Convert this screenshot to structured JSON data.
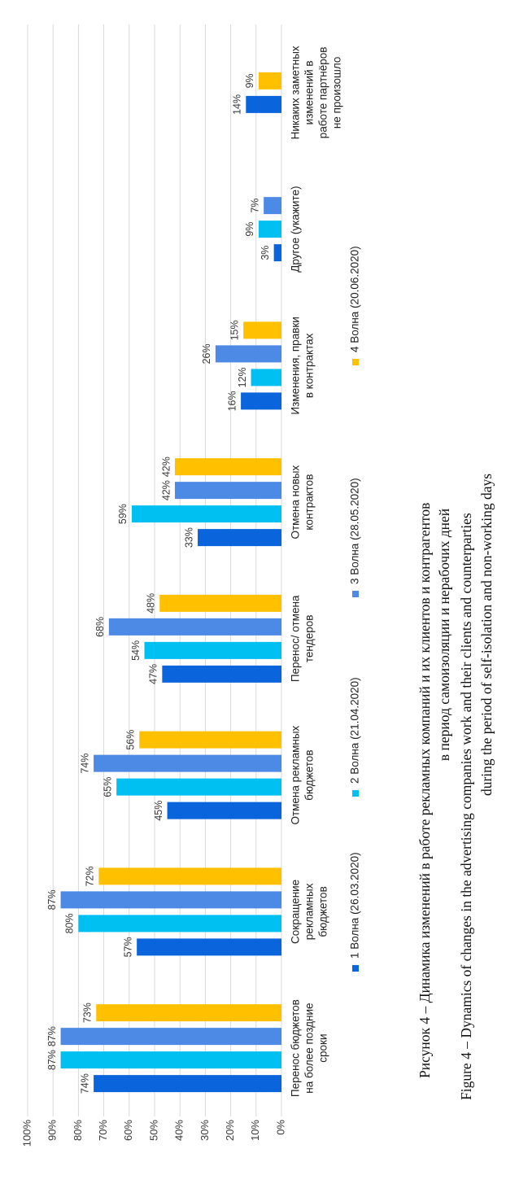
{
  "chart_data": {
    "type": "bar",
    "orientation": "rotated-90-ccw",
    "ylim": [
      0,
      100
    ],
    "yticks": [
      "0%",
      "10%",
      "20%",
      "30%",
      "40%",
      "50%",
      "60%",
      "70%",
      "80%",
      "90%",
      "100%"
    ],
    "grid": true,
    "legend_position": "bottom",
    "categories": [
      [
        "Перенос бюджетов",
        "на более поздние",
        "сроки"
      ],
      [
        "Сокращение",
        "рекламных",
        "бюджетов"
      ],
      [
        "Отмена рекламных",
        "бюджетов"
      ],
      [
        "Перенос/ отмена",
        "тендеров"
      ],
      [
        "Отмена новых",
        "контрактов"
      ],
      [
        "Изменения, правки",
        "в контрактах"
      ],
      [
        "Другое (укажите)"
      ],
      [
        "Никаких заметных",
        "изменений в",
        "работе партнёров",
        "не произошло"
      ]
    ],
    "series": [
      {
        "name": "1 Волна (26.03.2020)",
        "color": "#0a64dc",
        "values": [
          74,
          57,
          45,
          47,
          33,
          16,
          3,
          14
        ]
      },
      {
        "name": "2 Волна (21.04.2020)",
        "color": "#00c0f2",
        "values": [
          87,
          80,
          65,
          54,
          59,
          12,
          9,
          null
        ]
      },
      {
        "name": "3 Волна (28.05.2020)",
        "color": "#4d8ae6",
        "values": [
          87,
          87,
          74,
          68,
          42,
          26,
          7,
          null
        ]
      },
      {
        "name": "4 Волна (20.06.2020)",
        "color": "#ffc000",
        "values": [
          73,
          72,
          56,
          48,
          42,
          15,
          null,
          9
        ]
      }
    ]
  },
  "caption": {
    "ru_line1": "Рисунок 4 – Динамика изменений в работе рекламных компаний и их клиентов и контрагентов",
    "ru_line2": "в период самоизоляции и нерабочих дней",
    "en_line1": "Figure 4 – Dynamics of changes in the advertising companies work and their clients and counterparties",
    "en_line2": "during the period of self-isolation and non-working days"
  }
}
